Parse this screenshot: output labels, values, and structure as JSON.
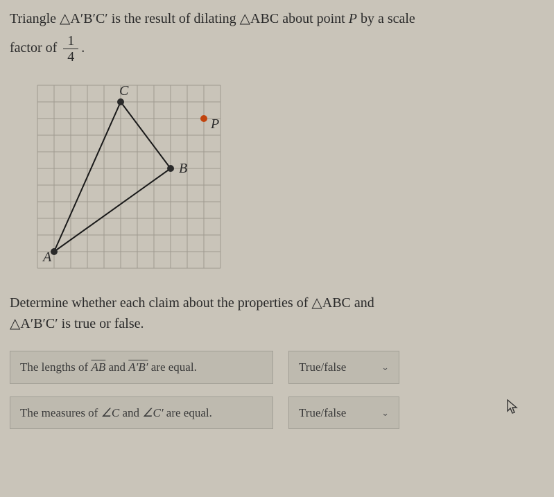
{
  "problem": {
    "line1_pre": "Triangle ",
    "tri1": "△A′B′C′",
    "line1_mid": " is the result of dilating ",
    "tri2": "△ABC",
    "line1_post1": " about point ",
    "pointP": "P",
    "line1_post2": " by a scale",
    "line2_pre": "factor of ",
    "frac_num": "1",
    "frac_den": "4",
    "line2_post": "."
  },
  "diagram": {
    "grid": {
      "cols": 11,
      "rows": 11,
      "cell": 24,
      "stroke": "#9e9a90",
      "bg": "#c9c4b9"
    },
    "points": {
      "A": {
        "x": 1,
        "y": 10,
        "label": "A",
        "color": "#2a2a2a"
      },
      "B": {
        "x": 8,
        "y": 5,
        "label": "B",
        "color": "#2a2a2a"
      },
      "C": {
        "x": 5,
        "y": 1,
        "label": "C",
        "color": "#2a2a2a"
      },
      "P": {
        "x": 10,
        "y": 2,
        "label": "P",
        "color": "#c1440e"
      }
    },
    "triangle_stroke": "#1a1a1a",
    "triangle_width": 2
  },
  "instruction": {
    "pre": "Determine whether each claim about the properties of ",
    "triABC": "△ABC",
    "mid": " and ",
    "triAprime": "△A′B′C′",
    "post": " is true or false."
  },
  "claims": {
    "c1": {
      "pre": "The lengths of ",
      "seg1": "AB",
      "mid": " and ",
      "seg2": "A′B′",
      "post": " are equal."
    },
    "c2": {
      "pre": "The measures of ",
      "ang1": "∠C",
      "mid": " and ",
      "ang2": "∠C′",
      "post": " are equal."
    }
  },
  "select": {
    "label": "True/false"
  }
}
